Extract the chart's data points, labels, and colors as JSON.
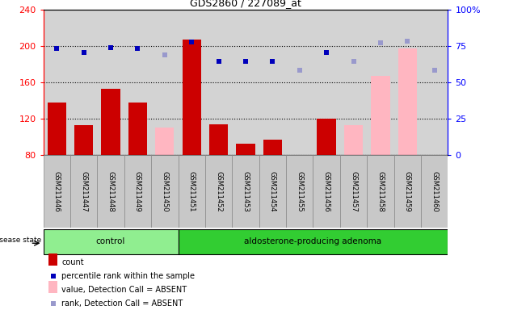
{
  "title": "GDS2860 / 227089_at",
  "samples": [
    "GSM211446",
    "GSM211447",
    "GSM211448",
    "GSM211449",
    "GSM211450",
    "GSM211451",
    "GSM211452",
    "GSM211453",
    "GSM211454",
    "GSM211455",
    "GSM211456",
    "GSM211457",
    "GSM211458",
    "GSM211459",
    "GSM211460"
  ],
  "count_values": [
    138,
    113,
    153,
    138,
    null,
    207,
    114,
    92,
    97,
    null,
    120,
    null,
    null,
    null,
    null
  ],
  "count_absent": [
    null,
    null,
    null,
    null,
    110,
    null,
    null,
    null,
    null,
    null,
    null,
    113,
    167,
    197,
    null
  ],
  "rank_present": [
    197,
    193,
    198,
    197,
    null,
    204,
    183,
    183,
    183,
    null,
    193,
    null,
    null,
    null,
    null
  ],
  "rank_absent": [
    null,
    null,
    null,
    null,
    190,
    null,
    null,
    null,
    null,
    173,
    null,
    183,
    203,
    205,
    173
  ],
  "ylim_left": [
    80,
    240
  ],
  "ylim_right": [
    0,
    100
  ],
  "yticks_left": [
    80,
    120,
    160,
    200,
    240
  ],
  "yticks_right": [
    0,
    25,
    50,
    75,
    100
  ],
  "plot_bg_color": "#d3d3d3",
  "control_color": "#90EE90",
  "adenoma_color": "#32CD32",
  "bar_red": "#CC0000",
  "bar_pink": "#FFB6C1",
  "dot_blue": "#0000BB",
  "dot_lightblue": "#9999CC",
  "control_count": 5,
  "adenoma_count": 10,
  "legend_items": [
    {
      "color": "#CC0000",
      "type": "rect",
      "label": "count"
    },
    {
      "color": "#0000BB",
      "type": "square",
      "label": "percentile rank within the sample"
    },
    {
      "color": "#FFB6C1",
      "type": "rect",
      "label": "value, Detection Call = ABSENT"
    },
    {
      "color": "#9999CC",
      "type": "square",
      "label": "rank, Detection Call = ABSENT"
    }
  ]
}
